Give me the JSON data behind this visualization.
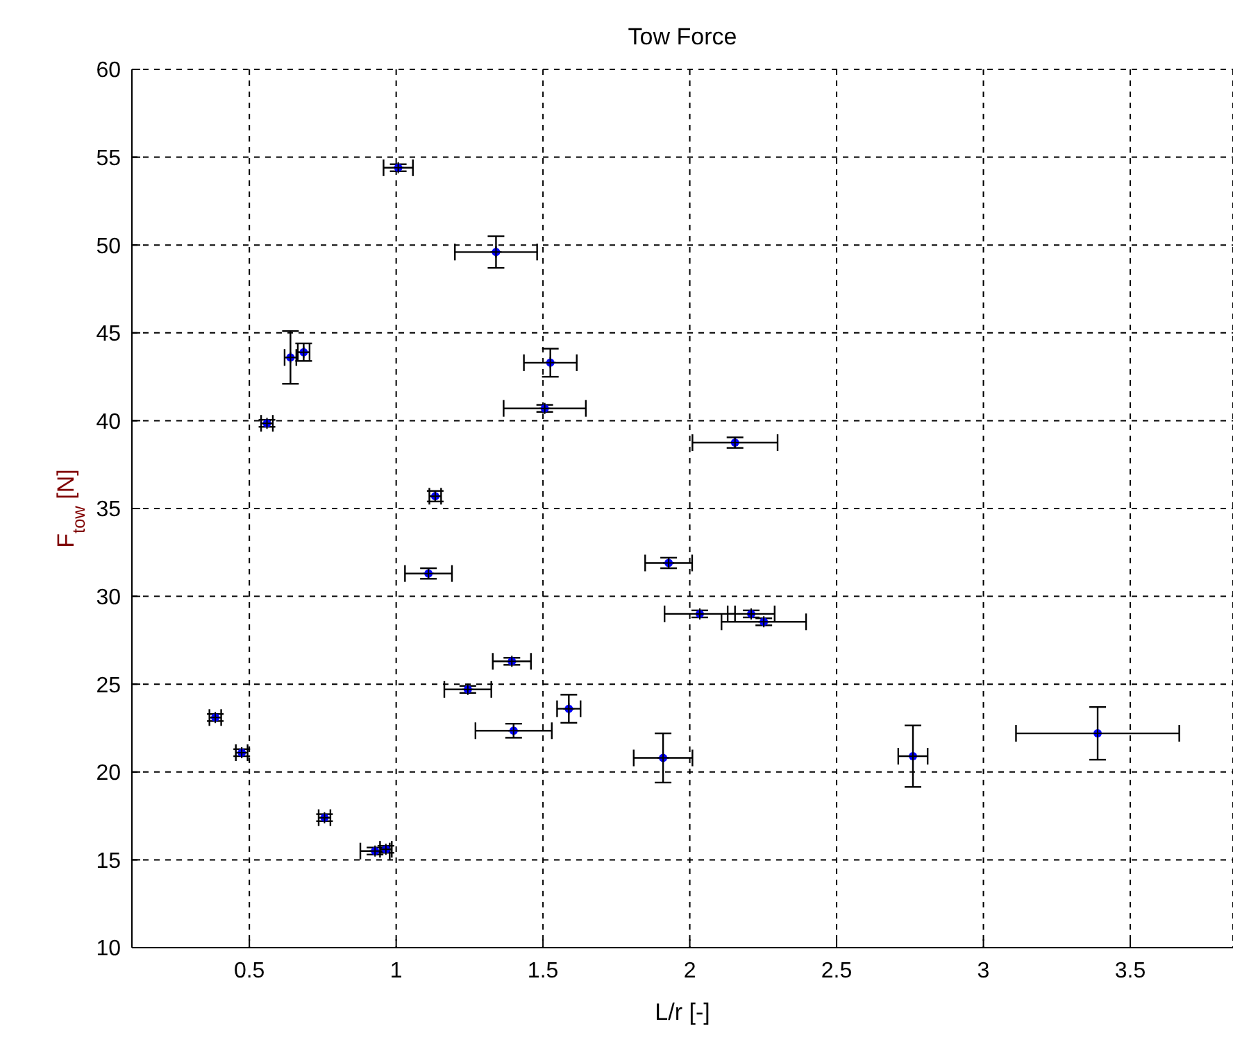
{
  "chart_data": {
    "type": "scatter",
    "title": "Tow Force",
    "xlabel": "L/r [-]",
    "ylabel": "F$_{tow}$ [N]",
    "xlim": [
      0.1,
      3.85
    ],
    "xticks": [
      0.5,
      1,
      1.5,
      2,
      2.5,
      3,
      3.5
    ],
    "ylim": [
      10,
      60
    ],
    "yticks": [
      10,
      15,
      20,
      25,
      30,
      35,
      40,
      45,
      50,
      55,
      60
    ],
    "grid": true,
    "marker": "circle",
    "series": [
      {
        "color": "#0000ff",
        "x": [
          1.007,
          1.34,
          0.64,
          0.685,
          0.56,
          1.525,
          1.506,
          1.133,
          1.11,
          1.394,
          1.244,
          1.588,
          1.4,
          0.384,
          0.474,
          0.756,
          0.928,
          0.965,
          2.154,
          1.928,
          2.034,
          2.209,
          2.252,
          1.909,
          2.76,
          3.389
        ],
        "values": [
          54.4,
          49.6,
          43.6,
          43.9,
          39.85,
          43.3,
          40.7,
          35.7,
          31.3,
          26.3,
          24.7,
          23.6,
          22.35,
          23.1,
          21.1,
          17.4,
          15.5,
          15.6,
          38.75,
          31.9,
          29.0,
          29.0,
          28.55,
          20.8,
          20.9,
          22.2
        ],
        "errors": [
          0.2,
          0.9,
          1.5,
          0.5,
          0.2,
          0.8,
          0.2,
          0.3,
          0.3,
          0.2,
          0.2,
          0.8,
          0.4,
          0.2,
          0.2,
          0.2,
          0.2,
          0.2,
          0.3,
          0.3,
          0.2,
          0.2,
          0.2,
          1.4,
          1.75,
          1.5
        ],
        "xerrors": [
          0.05,
          0.14,
          0.02,
          0.02,
          0.02,
          0.09,
          0.14,
          0.02,
          0.08,
          0.065,
          0.08,
          0.04,
          0.13,
          0.02,
          0.02,
          0.02,
          0.05,
          0.02,
          0.145,
          0.08,
          0.12,
          0.08,
          0.144,
          0.1,
          0.05,
          0.278
        ]
      }
    ]
  }
}
